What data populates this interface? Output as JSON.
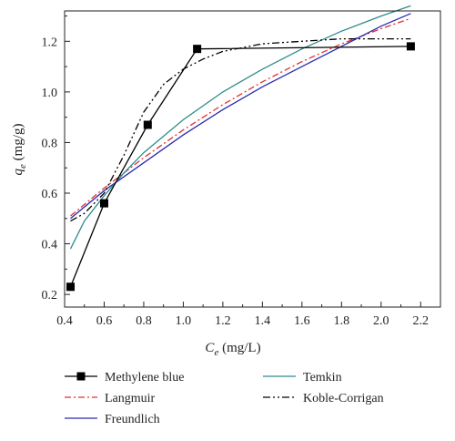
{
  "chart_data": {
    "type": "line",
    "title": "",
    "xlabel": {
      "main": "C",
      "sub": "e",
      "unit": " (mg/L)"
    },
    "ylabel": {
      "main": "q",
      "sub": "e",
      "unit": " (mg/g)"
    },
    "xlim": [
      0.4,
      2.3
    ],
    "ylim": [
      0.15,
      1.32
    ],
    "x_ticks": [
      0.4,
      0.6,
      0.8,
      1.0,
      1.2,
      1.4,
      1.6,
      1.8,
      2.0,
      2.2
    ],
    "x_tick_labels": [
      "0.4",
      "0.6",
      "0.8",
      "1.0",
      "1.2",
      "1.4",
      "1.6",
      "1.8",
      "2.0",
      "2.2"
    ],
    "y_ticks": [
      0.2,
      0.4,
      0.6,
      0.8,
      1.0,
      1.2
    ],
    "y_tick_labels": [
      "0.2",
      "0.4",
      "0.6",
      "0.8",
      "1.0",
      "1.2"
    ],
    "grid": false,
    "legend_placement": "bottom",
    "series": [
      {
        "name": "Methylene blue",
        "color": "#000000",
        "style": "solid-square-markers",
        "x": [
          0.43,
          0.6,
          0.82,
          1.07,
          2.15
        ],
        "y": [
          0.23,
          0.56,
          0.87,
          1.17,
          1.18
        ]
      },
      {
        "name": "Langmuir",
        "color": "#e03030",
        "style": "dash-dot",
        "x": [
          0.43,
          0.6,
          0.8,
          1.0,
          1.2,
          1.4,
          1.6,
          1.8,
          2.0,
          2.15
        ],
        "y": [
          0.51,
          0.62,
          0.74,
          0.85,
          0.95,
          1.04,
          1.12,
          1.19,
          1.25,
          1.29
        ]
      },
      {
        "name": "Freundlich",
        "color": "#2a2ab0",
        "style": "solid",
        "x": [
          0.43,
          0.6,
          0.8,
          1.0,
          1.2,
          1.4,
          1.6,
          1.8,
          2.0,
          2.15
        ],
        "y": [
          0.5,
          0.61,
          0.72,
          0.83,
          0.93,
          1.02,
          1.1,
          1.18,
          1.26,
          1.31
        ]
      },
      {
        "name": "Temkin",
        "color": "#2e8b8b",
        "style": "solid",
        "x": [
          0.43,
          0.5,
          0.6,
          0.7,
          0.8,
          1.0,
          1.2,
          1.4,
          1.6,
          1.8,
          2.0,
          2.15
        ],
        "y": [
          0.38,
          0.49,
          0.59,
          0.68,
          0.76,
          0.89,
          1.0,
          1.09,
          1.17,
          1.24,
          1.3,
          1.34
        ]
      },
      {
        "name": "Koble-Corrigan",
        "color": "#000000",
        "style": "dash-dot-dot",
        "x": [
          0.43,
          0.5,
          0.6,
          0.7,
          0.8,
          0.9,
          1.0,
          1.1,
          1.2,
          1.4,
          1.6,
          1.8,
          2.0,
          2.15
        ],
        "y": [
          0.49,
          0.52,
          0.6,
          0.75,
          0.92,
          1.03,
          1.09,
          1.13,
          1.16,
          1.19,
          1.2,
          1.21,
          1.21,
          1.21
        ]
      }
    ]
  }
}
